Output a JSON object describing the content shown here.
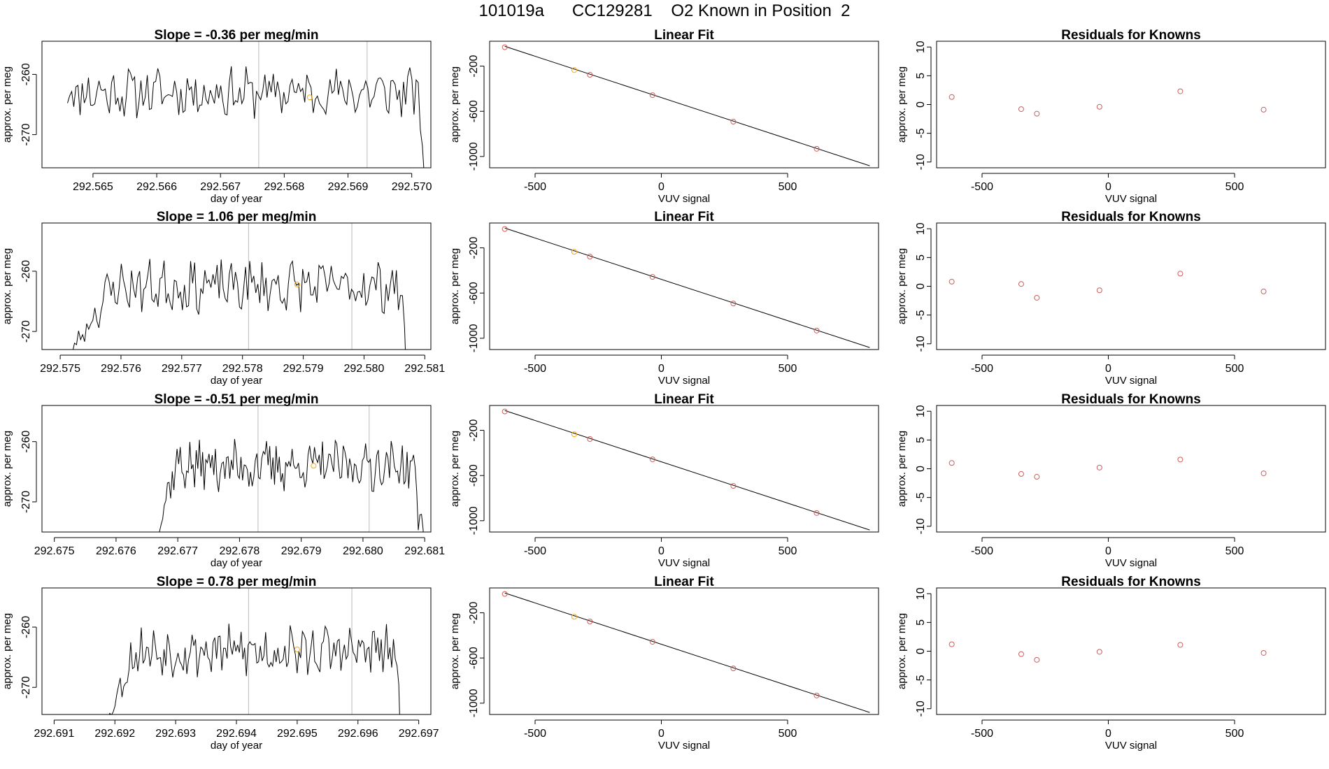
{
  "title": "101019a      CC129281    O2 Known in Position  2",
  "colors": {
    "line": "#000000",
    "vline": "#bbbbbb",
    "known_point": "#cd5c5c",
    "highlight_point": "#ffa500",
    "fit_line": "#000000"
  },
  "chart_data": [
    {
      "type": "line",
      "title": "Slope =  -0.36  per meg/min",
      "xlabel": "day of year",
      "ylabel": "approx. per meg",
      "xlim": [
        292.5642,
        292.5703
      ],
      "ylim": [
        -275.5,
        -254.5
      ],
      "xticks": [
        "292.565",
        "292.566",
        "292.567",
        "292.568",
        "292.569",
        "292.570"
      ],
      "yticks": [
        "-260",
        "-270"
      ],
      "vlines": [
        292.5676,
        292.5693
      ],
      "highlight_point": [
        292.5684,
        -263.8
      ],
      "seed": 11,
      "start": 292.5646,
      "end": 292.5702,
      "ramp_end": null,
      "fall_start": 292.5701,
      "base": -263.0,
      "amp": 3.4
    },
    {
      "type": "scatter",
      "title": "Linear Fit",
      "xlabel": "VUV signal",
      "ylabel": "approx. per meg",
      "xlim": [
        -680,
        860
      ],
      "ylim": [
        -1100,
        20
      ],
      "xticks": [
        "-500",
        "0",
        "500"
      ],
      "yticks": [
        "-200",
        "-600",
        "-1000"
      ],
      "fit_line": [
        [
          -620,
          -25
        ],
        [
          825,
          -1082
        ]
      ],
      "points": [
        [
          -620,
          -33
        ],
        [
          -345,
          -235
        ],
        [
          -283,
          -277
        ],
        [
          -35,
          -457
        ],
        [
          285,
          -692
        ],
        [
          615,
          -932
        ]
      ],
      "highlight_index": 1
    },
    {
      "type": "scatter",
      "title": "Residuals for Knowns",
      "xlabel": "VUV signal",
      "ylabel": "approx. per meg",
      "xlim": [
        -680,
        860
      ],
      "ylim": [
        -11,
        11
      ],
      "xticks": [
        "-500",
        "0",
        "500"
      ],
      "yticks": [
        "10",
        "5",
        "0",
        "-5",
        "-10"
      ],
      "points": [
        [
          -620,
          1.3
        ],
        [
          -345,
          -0.8
        ],
        [
          -283,
          -1.6
        ],
        [
          -35,
          -0.4
        ],
        [
          285,
          2.3
        ],
        [
          615,
          -0.9
        ]
      ]
    },
    {
      "type": "line",
      "title": "Slope =  1.06  per meg/min",
      "xlabel": "day of year",
      "ylabel": "approx. per meg",
      "xlim": [
        292.5747,
        292.5811
      ],
      "ylim": [
        -273.0,
        -252.0
      ],
      "xticks": [
        "292.575",
        "292.576",
        "292.577",
        "292.578",
        "292.579",
        "292.580",
        "292.581"
      ],
      "yticks": [
        "-260",
        "-270"
      ],
      "vlines": [
        292.5781,
        292.5798
      ],
      "highlight_point": [
        292.5789,
        -262.2
      ],
      "seed": 23,
      "start": 292.575,
      "end": 292.5807,
      "ramp_end": 292.576,
      "fall_start": 292.5806,
      "base": -262.5,
      "amp": 3.6
    },
    {
      "type": "scatter",
      "title": "Linear Fit",
      "xlabel": "VUV signal",
      "ylabel": "approx. per meg",
      "xlim": [
        -680,
        860
      ],
      "ylim": [
        -1100,
        20
      ],
      "xticks": [
        "-500",
        "0",
        "500"
      ],
      "yticks": [
        "-200",
        "-600",
        "-1000"
      ],
      "fit_line": [
        [
          -620,
          -25
        ],
        [
          825,
          -1082
        ]
      ],
      "points": [
        [
          -620,
          -33
        ],
        [
          -345,
          -235
        ],
        [
          -283,
          -277
        ],
        [
          -35,
          -457
        ],
        [
          285,
          -692
        ],
        [
          615,
          -932
        ]
      ],
      "highlight_index": 1
    },
    {
      "type": "scatter",
      "title": "Residuals for Knowns",
      "xlabel": "VUV signal",
      "ylabel": "approx. per meg",
      "xlim": [
        -680,
        860
      ],
      "ylim": [
        -11,
        11
      ],
      "xticks": [
        "-500",
        "0",
        "500"
      ],
      "yticks": [
        "10",
        "5",
        "0",
        "-5",
        "-10"
      ],
      "points": [
        [
          -620,
          0.8
        ],
        [
          -345,
          0.4
        ],
        [
          -283,
          -2.0
        ],
        [
          -35,
          -0.7
        ],
        [
          285,
          2.2
        ],
        [
          615,
          -0.9
        ]
      ]
    },
    {
      "type": "line",
      "title": "Slope =  -0.51  per meg/min",
      "xlabel": "day of year",
      "ylabel": "approx. per meg",
      "xlim": [
        292.6748,
        292.6811
      ],
      "ylim": [
        -275.0,
        -254.0
      ],
      "xticks": [
        "292.675",
        "292.676",
        "292.677",
        "292.678",
        "292.679",
        "292.680",
        "292.681"
      ],
      "yticks": [
        "-260",
        "-270"
      ],
      "vlines": [
        292.6783,
        292.6801
      ],
      "highlight_point": [
        292.6792,
        -264.0
      ],
      "seed": 37,
      "start": 292.6766,
      "end": 292.681,
      "ramp_end": 292.677,
      "fall_start": 292.6808,
      "base": -264.0,
      "amp": 3.5
    },
    {
      "type": "scatter",
      "title": "Linear Fit",
      "xlabel": "VUV signal",
      "ylabel": "approx. per meg",
      "xlim": [
        -680,
        860
      ],
      "ylim": [
        -1100,
        20
      ],
      "xticks": [
        "-500",
        "0",
        "500"
      ],
      "yticks": [
        "-200",
        "-600",
        "-1000"
      ],
      "fit_line": [
        [
          -620,
          -25
        ],
        [
          825,
          -1082
        ]
      ],
      "points": [
        [
          -620,
          -33
        ],
        [
          -345,
          -235
        ],
        [
          -283,
          -277
        ],
        [
          -35,
          -457
        ],
        [
          285,
          -692
        ],
        [
          615,
          -932
        ]
      ],
      "highlight_index": 1
    },
    {
      "type": "scatter",
      "title": "Residuals for Knowns",
      "xlabel": "VUV signal",
      "ylabel": "approx. per meg",
      "xlim": [
        -680,
        860
      ],
      "ylim": [
        -11,
        11
      ],
      "xticks": [
        "-500",
        "0",
        "500"
      ],
      "yticks": [
        "10",
        "5",
        "0",
        "-5",
        "-10"
      ],
      "points": [
        [
          -620,
          1.0
        ],
        [
          -345,
          -0.9
        ],
        [
          -283,
          -1.4
        ],
        [
          -35,
          0.2
        ],
        [
          285,
          1.6
        ],
        [
          615,
          -0.8
        ]
      ]
    },
    {
      "type": "line",
      "title": "Slope =  0.78  per meg/min",
      "xlabel": "day of year",
      "ylabel": "approx. per meg",
      "xlim": [
        292.6908,
        292.6972
      ],
      "ylim": [
        -274.5,
        -253.5
      ],
      "xticks": [
        "292.691",
        "292.692",
        "292.693",
        "292.694",
        "292.695",
        "292.696",
        "292.697"
      ],
      "yticks": [
        "-260",
        "-270"
      ],
      "vlines": [
        292.6942,
        292.6959
      ],
      "highlight_point": [
        292.695,
        -263.7
      ],
      "seed": 53,
      "start": 292.6918,
      "end": 292.6967,
      "ramp_end": 292.6924,
      "fall_start": 292.6966,
      "base": -264.0,
      "amp": 3.5
    },
    {
      "type": "scatter",
      "title": "Linear Fit",
      "xlabel": "VUV signal",
      "ylabel": "approx. per meg",
      "xlim": [
        -680,
        860
      ],
      "ylim": [
        -1100,
        20
      ],
      "xticks": [
        "-500",
        "0",
        "500"
      ],
      "yticks": [
        "-200",
        "-600",
        "-1000"
      ],
      "fit_line": [
        [
          -620,
          -25
        ],
        [
          825,
          -1082
        ]
      ],
      "points": [
        [
          -620,
          -33
        ],
        [
          -345,
          -235
        ],
        [
          -283,
          -277
        ],
        [
          -35,
          -457
        ],
        [
          285,
          -692
        ],
        [
          615,
          -932
        ]
      ],
      "highlight_index": 1
    },
    {
      "type": "scatter",
      "title": "Residuals for Knowns",
      "xlabel": "VUV signal",
      "ylabel": "approx. per meg",
      "xlim": [
        -680,
        860
      ],
      "ylim": [
        -11,
        11
      ],
      "xticks": [
        "-500",
        "0",
        "500"
      ],
      "yticks": [
        "10",
        "5",
        "0",
        "-5",
        "-10"
      ],
      "points": [
        [
          -620,
          1.2
        ],
        [
          -345,
          -0.5
        ],
        [
          -283,
          -1.5
        ],
        [
          -35,
          -0.1
        ],
        [
          285,
          1.1
        ],
        [
          615,
          -0.3
        ]
      ]
    }
  ]
}
